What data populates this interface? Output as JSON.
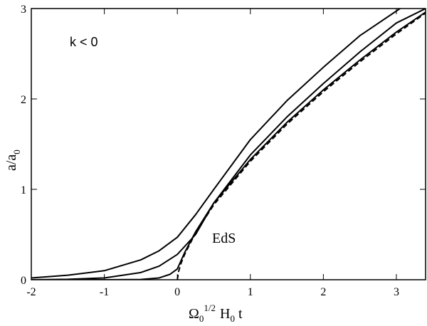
{
  "chart_data": {
    "type": "line",
    "xlabel": [
      "Ω",
      "0",
      "1/2",
      "H",
      "0",
      "t"
    ],
    "ylabel": [
      "a/a",
      "0"
    ],
    "annotations": [
      "k < 0",
      "EdS"
    ],
    "xlim": [
      -2,
      3.4
    ],
    "ylim": [
      0,
      3
    ],
    "xticks": [
      -2,
      -1,
      0,
      1,
      2,
      3
    ],
    "yticks": [
      0,
      1,
      2,
      3
    ],
    "series": [
      {
        "color": "#000000",
        "dash": false,
        "x": [
          -2,
          -1.5,
          -1,
          -0.5,
          -0.25,
          0,
          0.25,
          0.5,
          1,
          1.5,
          2,
          2.5,
          3.05
        ],
        "values": [
          0.02,
          0.05,
          0.1,
          0.22,
          0.32,
          0.47,
          0.72,
          1.0,
          1.55,
          1.98,
          2.35,
          2.7,
          3.0
        ]
      },
      {
        "color": "#000000",
        "dash": false,
        "x": [
          -2,
          -1.5,
          -1,
          -0.5,
          -0.25,
          0,
          0.25,
          0.5,
          1,
          1.5,
          2,
          2.5,
          3,
          3.4
        ],
        "values": [
          0,
          0.005,
          0.02,
          0.08,
          0.15,
          0.28,
          0.5,
          0.85,
          1.38,
          1.8,
          2.17,
          2.52,
          2.84,
          3.0
        ]
      },
      {
        "color": "#000000",
        "dash": false,
        "x": [
          -2,
          -1,
          -0.5,
          -0.25,
          -0.1,
          0,
          0.1,
          0.25,
          0.5,
          1,
          1.5,
          2,
          2.5,
          3,
          3.4
        ],
        "values": [
          0,
          0,
          0.003,
          0.02,
          0.06,
          0.12,
          0.3,
          0.53,
          0.85,
          1.33,
          1.74,
          2.1,
          2.43,
          2.74,
          2.96
        ]
      },
      {
        "color": "#000000",
        "dash": true,
        "x": [
          0,
          0.02,
          0.05,
          0.1,
          0.25,
          0.5,
          1,
          1.5,
          2,
          2.5,
          3,
          3.4
        ],
        "values": [
          0,
          0.1,
          0.18,
          0.28,
          0.52,
          0.83,
          1.31,
          1.72,
          2.08,
          2.41,
          2.72,
          2.95
        ]
      }
    ]
  }
}
